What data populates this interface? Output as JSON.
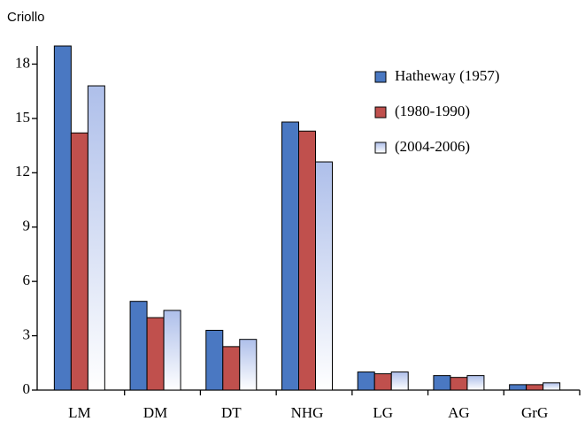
{
  "chart_data": {
    "type": "bar",
    "title": "Criollo",
    "categories": [
      "LM",
      "DM",
      "DT",
      "NHG",
      "LG",
      "AG",
      "GrG"
    ],
    "series": [
      {
        "name": "Hatheway (1957)",
        "color": "#4a78c2",
        "values": [
          19,
          4.9,
          3.3,
          14.8,
          1.0,
          0.8,
          0.3
        ]
      },
      {
        "name": "(1980-1990)",
        "color": "#c0504d",
        "values": [
          14.2,
          4.0,
          2.4,
          14.3,
          0.9,
          0.7,
          0.3
        ]
      },
      {
        "name": "(2004-2006)",
        "color": "#aebfea",
        "gradient": true,
        "values": [
          16.8,
          4.4,
          2.8,
          12.6,
          1.0,
          0.8,
          0.4
        ]
      }
    ],
    "ylim": [
      0,
      19
    ],
    "yticks": [
      0,
      3,
      6,
      9,
      12,
      15,
      18
    ],
    "legend": "top-right"
  }
}
